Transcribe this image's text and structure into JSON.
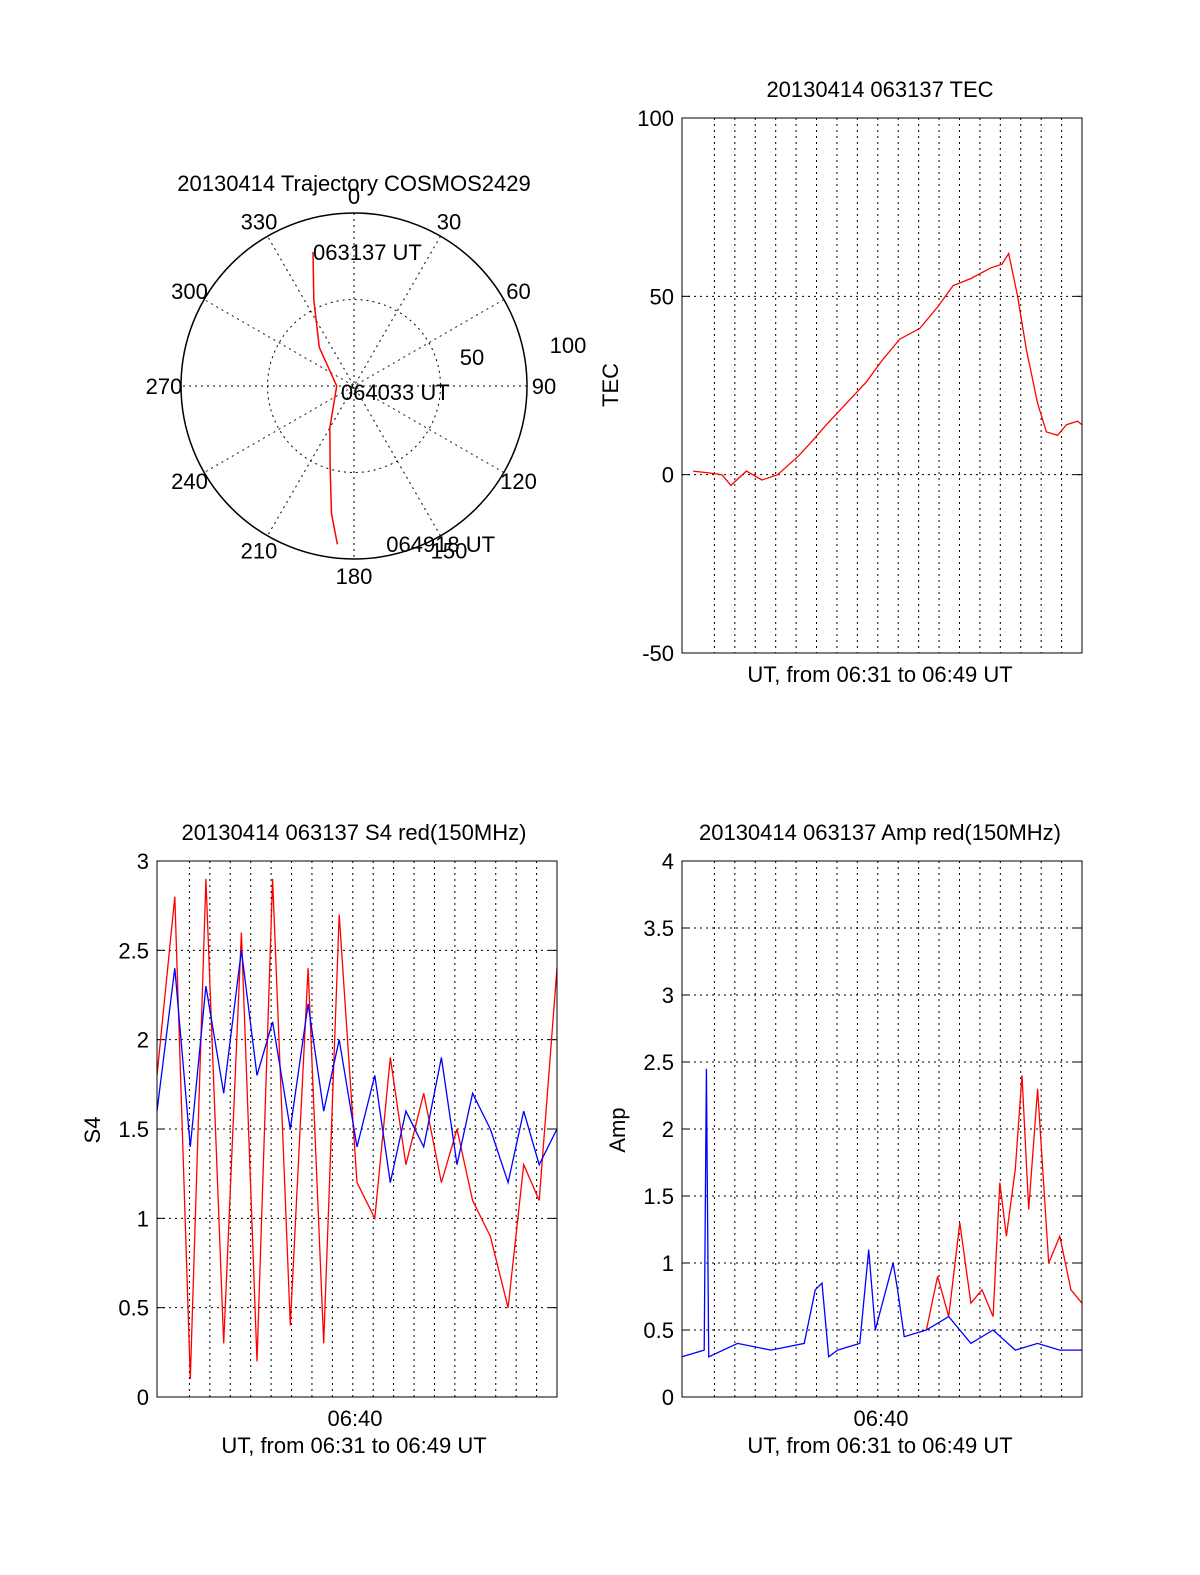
{
  "chart_data": [
    {
      "type": "polar",
      "title": "20130414 Trajectory COSMOS2429",
      "angle_labels": [
        "0",
        "30",
        "60",
        "90",
        "120",
        "150",
        "180",
        "210",
        "240",
        "270",
        "300",
        "330"
      ],
      "radial_labels": [
        "50",
        "100"
      ],
      "rlim": [
        0,
        100
      ],
      "grid": true,
      "trajectory": {
        "color": "#ff0000",
        "points": [
          {
            "az": 343,
            "el": 81
          },
          {
            "az": 335,
            "el": 55
          },
          {
            "az": 318,
            "el": 30
          },
          {
            "az": 270,
            "el": 10
          },
          {
            "az": 210,
            "el": 28
          },
          {
            "az": 196,
            "el": 50
          },
          {
            "az": 190,
            "el": 75
          },
          {
            "az": 186,
            "el": 92
          }
        ]
      },
      "annotations": [
        {
          "text": "063137 UT",
          "az": 343,
          "el": 81
        },
        {
          "text": "064033 UT",
          "az": 90,
          "el": 10
        },
        {
          "text": "064918 UT",
          "az": 170,
          "el": 94
        }
      ]
    },
    {
      "type": "line",
      "title": "20130414 063137 TEC",
      "xlabel": "UT, from 06:31 to 06:49 UT",
      "ylabel": "TEC",
      "xlim": [
        0,
        18
      ],
      "ylim": [
        -50,
        100
      ],
      "yticks": [
        "100",
        "50",
        "0",
        "-50"
      ],
      "grid": true,
      "series": [
        {
          "color": "#ff0000",
          "x": [
            0.5,
            1.2,
            1.8,
            2.2,
            2.9,
            3.6,
            4.3,
            5.2,
            5.8,
            6.5,
            7.4,
            8.3,
            9.0,
            9.8,
            10.7,
            11.5,
            12.2,
            13.0,
            13.9,
            14.4,
            14.7,
            15.1,
            15.5,
            16.0,
            16.4,
            16.9,
            17.3,
            17.8,
            18.0
          ],
          "y": [
            1,
            0.5,
            0,
            -3,
            1,
            -1.5,
            0,
            5,
            9,
            14,
            20,
            26,
            32,
            38,
            41,
            47,
            53,
            55,
            58,
            59,
            62,
            50,
            35,
            20,
            12,
            11,
            14,
            15,
            14
          ]
        }
      ]
    },
    {
      "type": "line",
      "title": "20130414 063137 S4 red(150MHz)",
      "xlabel": "UT, from 06:31 to 06:49 UT",
      "ylabel": "S4",
      "xtick_label": "06:40",
      "xlim": [
        0,
        18
      ],
      "ylim": [
        0,
        3
      ],
      "yticks": [
        "3",
        "2.5",
        "2",
        "1.5",
        "1",
        "0.5",
        "0"
      ],
      "grid": true,
      "series": [
        {
          "color": "#ff0000",
          "x": [
            0.0,
            0.8,
            1.5,
            2.2,
            3.0,
            3.8,
            4.5,
            5.2,
            6.0,
            6.8,
            7.5,
            8.2,
            9.0,
            9.8,
            10.5,
            11.2,
            12.0,
            12.8,
            13.5,
            14.2,
            15.0,
            15.8,
            16.5,
            17.2,
            18.0
          ],
          "y": [
            1.8,
            2.8,
            0.1,
            2.9,
            0.3,
            2.6,
            0.2,
            2.9,
            0.4,
            2.4,
            0.3,
            2.7,
            1.2,
            1.0,
            1.9,
            1.3,
            1.7,
            1.2,
            1.5,
            1.1,
            0.9,
            0.5,
            1.3,
            1.1,
            2.4
          ]
        },
        {
          "color": "#0000ff",
          "x": [
            0.0,
            0.8,
            1.5,
            2.2,
            3.0,
            3.8,
            4.5,
            5.2,
            6.0,
            6.8,
            7.5,
            8.2,
            9.0,
            9.8,
            10.5,
            11.2,
            12.0,
            12.8,
            13.5,
            14.2,
            15.0,
            15.8,
            16.5,
            17.2,
            18.0
          ],
          "y": [
            1.6,
            2.4,
            1.4,
            2.3,
            1.7,
            2.5,
            1.8,
            2.1,
            1.5,
            2.2,
            1.6,
            2.0,
            1.4,
            1.8,
            1.2,
            1.6,
            1.4,
            1.9,
            1.3,
            1.7,
            1.5,
            1.2,
            1.6,
            1.3,
            1.5
          ]
        }
      ]
    },
    {
      "type": "line",
      "title": "20130414 063137 Amp red(150MHz)",
      "xlabel": "UT, from 06:31 to 06:49 UT",
      "ylabel": "Amp",
      "xtick_label": "06:40",
      "xlim": [
        0,
        18
      ],
      "ylim": [
        0,
        4
      ],
      "yticks": [
        "4",
        "3.5",
        "3",
        "2.5",
        "2",
        "1.5",
        "1",
        "0.5",
        "0"
      ],
      "grid": true,
      "series": [
        {
          "color": "#ff0000",
          "x": [
            11.0,
            11.5,
            12.0,
            12.5,
            13.0,
            13.5,
            14.0,
            14.3,
            14.6,
            15.0,
            15.3,
            15.6,
            16.0,
            16.5,
            17.0,
            17.5,
            18.0
          ],
          "y": [
            0.5,
            0.9,
            0.6,
            1.3,
            0.7,
            0.8,
            0.6,
            1.6,
            1.2,
            1.7,
            2.4,
            1.4,
            2.3,
            1.0,
            1.2,
            0.8,
            0.7
          ]
        },
        {
          "color": "#0000ff",
          "x": [
            0.0,
            1.0,
            1.1,
            1.2,
            2.5,
            4.0,
            5.5,
            6.0,
            6.3,
            6.6,
            7.0,
            8.0,
            8.4,
            8.7,
            9.5,
            9.7,
            10.0,
            11.0,
            12.0,
            13.0,
            14.0,
            15.0,
            16.0,
            17.0,
            18.0
          ],
          "y": [
            0.3,
            0.35,
            2.45,
            0.3,
            0.4,
            0.35,
            0.4,
            0.8,
            0.85,
            0.3,
            0.35,
            0.4,
            1.1,
            0.5,
            1.0,
            0.8,
            0.45,
            0.5,
            0.6,
            0.4,
            0.5,
            0.35,
            0.4,
            0.35,
            0.35
          ]
        }
      ]
    }
  ]
}
